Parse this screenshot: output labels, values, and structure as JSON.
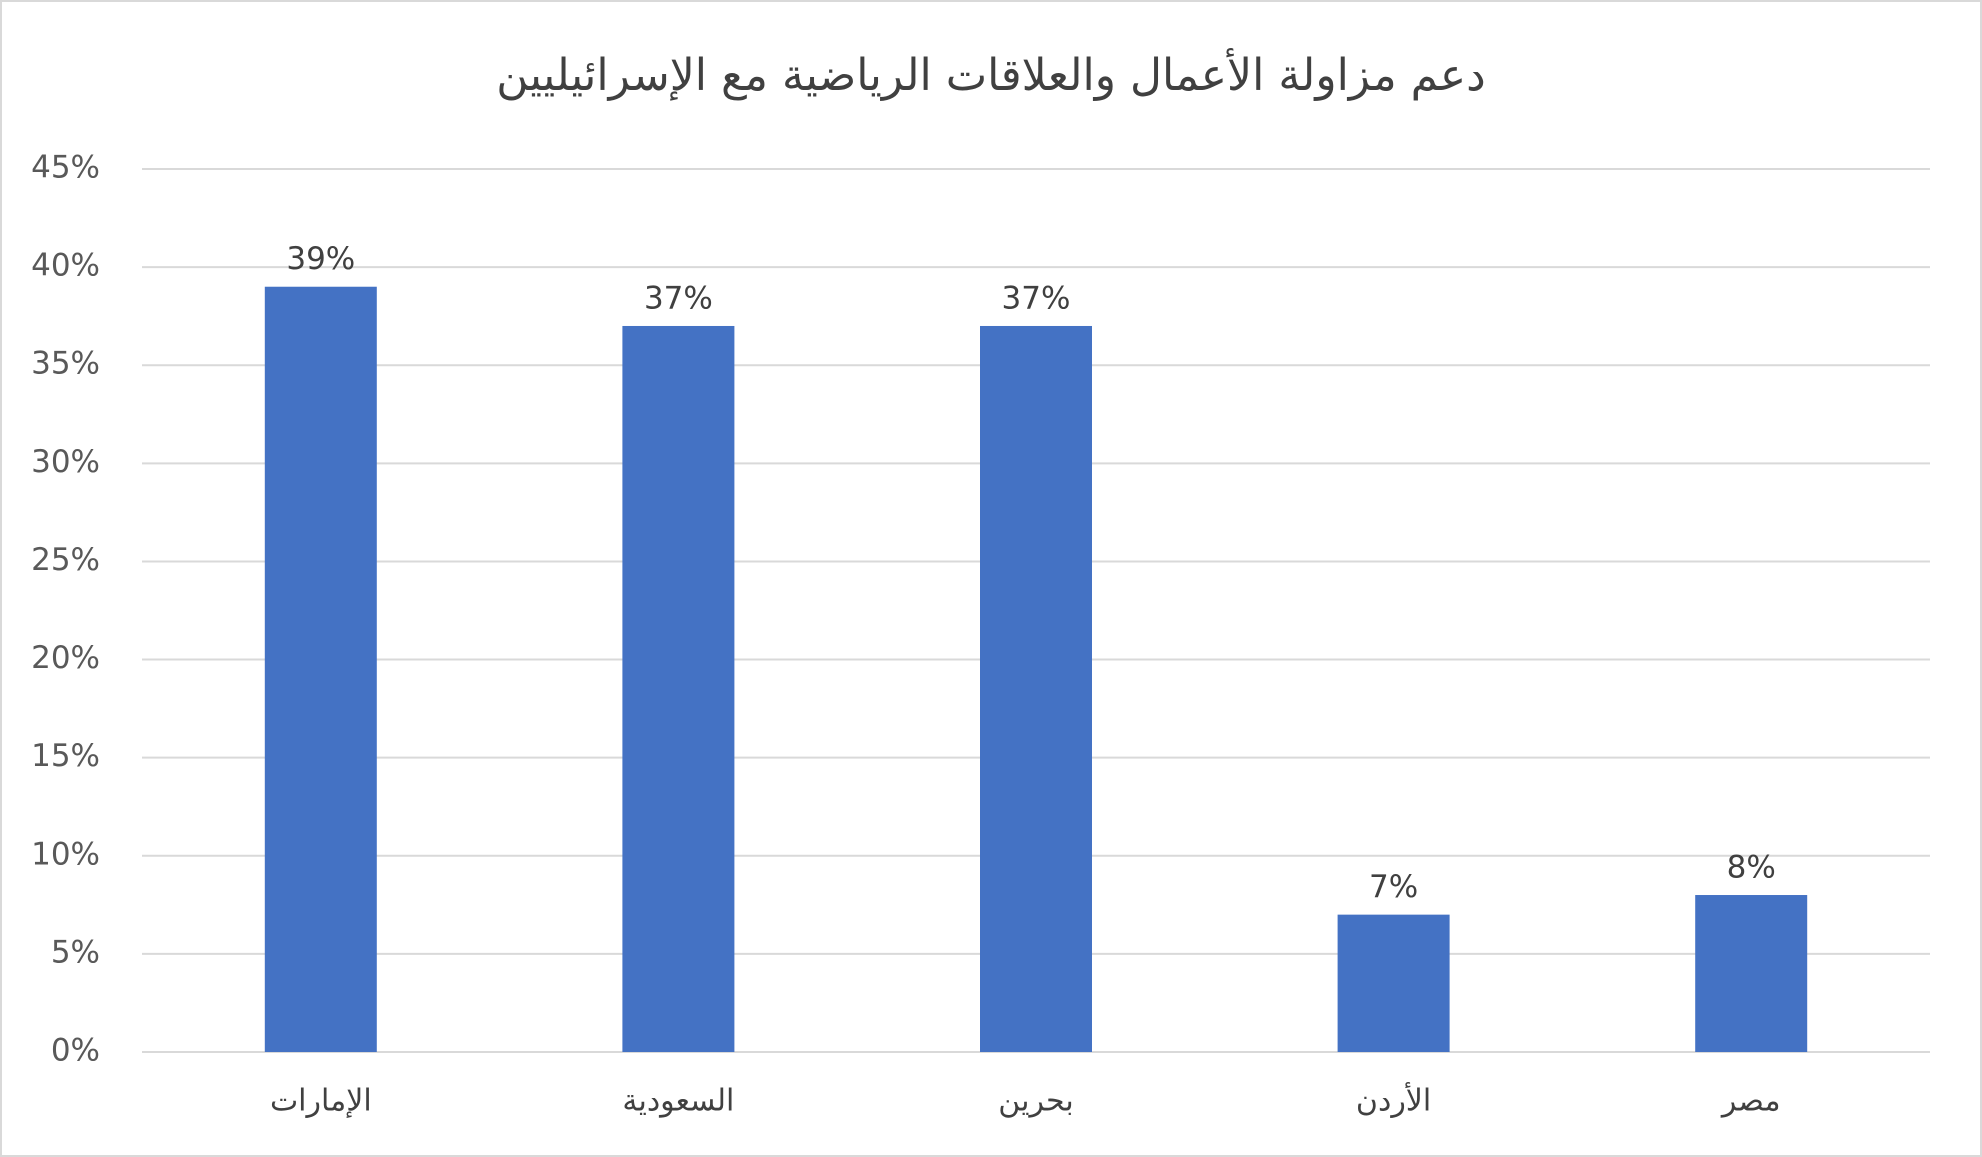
{
  "chart_data": {
    "type": "bar",
    "title": "دعم مزاولة الأعمال والعلاقات الرياضية مع الإسرائيليين",
    "categories": [
      "الإمارات",
      "السعودية",
      "بحرين",
      "الأردن",
      "مصر"
    ],
    "values": [
      39,
      37,
      37,
      7,
      8
    ],
    "value_labels": [
      "39%",
      "37%",
      "37%",
      "7%",
      "8%"
    ],
    "color": "#4472c4",
    "ylim": [
      0,
      45
    ],
    "yticks": [
      {
        "value": 0,
        "label": "0%"
      },
      {
        "value": 5,
        "label": "5%"
      },
      {
        "value": 10,
        "label": "10%"
      },
      {
        "value": 15,
        "label": "15%"
      },
      {
        "value": 20,
        "label": "20%"
      },
      {
        "value": 25,
        "label": "25%"
      },
      {
        "value": 30,
        "label": "30%"
      },
      {
        "value": 35,
        "label": "35%"
      },
      {
        "value": 40,
        "label": "40%"
      },
      {
        "value": 45,
        "label": "45%"
      }
    ],
    "grid": true
  }
}
